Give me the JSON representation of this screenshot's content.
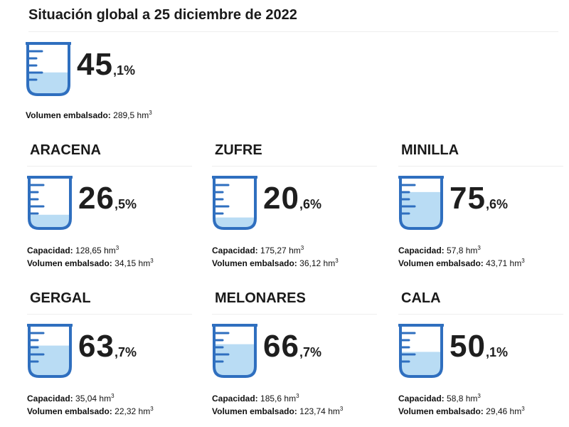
{
  "title": "Situación global a 25 diciembre de 2022",
  "colors": {
    "stroke": "#2f6fbf",
    "fill": "#b9dcf4",
    "text": "#1e1e1e"
  },
  "icon": "measuring-cup-icon",
  "global": {
    "percent_int": "45",
    "percent_dec": ",1%",
    "fill_level": 0.45,
    "volume_label": "Volumen embalsado:",
    "volume_value": "289,5 hm",
    "unit_exp": "3"
  },
  "labels": {
    "capacity": "Capacidad:",
    "volume": "Volumen embalsado:",
    "unit_exp": "3"
  },
  "reservoirs": [
    {
      "name": "ARACENA",
      "percent_int": "26",
      "percent_dec": ",5%",
      "fill_level": 0.265,
      "capacity": "128,65 hm",
      "volume": "34,15 hm"
    },
    {
      "name": "ZUFRE",
      "percent_int": "20",
      "percent_dec": ",6%",
      "fill_level": 0.206,
      "capacity": "175,27 hm",
      "volume": "36,12 hm"
    },
    {
      "name": "MINILLA",
      "percent_int": "75",
      "percent_dec": ",6%",
      "fill_level": 0.756,
      "capacity": "57,8 hm",
      "volume": "43,71 hm"
    },
    {
      "name": "GERGAL",
      "percent_int": "63",
      "percent_dec": ",7%",
      "fill_level": 0.637,
      "capacity": "35,04 hm",
      "volume": "22,32 hm"
    },
    {
      "name": "MELONARES",
      "percent_int": "66",
      "percent_dec": ",7%",
      "fill_level": 0.667,
      "capacity": "185,6 hm",
      "volume": "123,74 hm"
    },
    {
      "name": "CALA",
      "percent_int": "50",
      "percent_dec": ",1%",
      "fill_level": 0.501,
      "capacity": "58,8 hm",
      "volume": "29,46 hm"
    }
  ]
}
